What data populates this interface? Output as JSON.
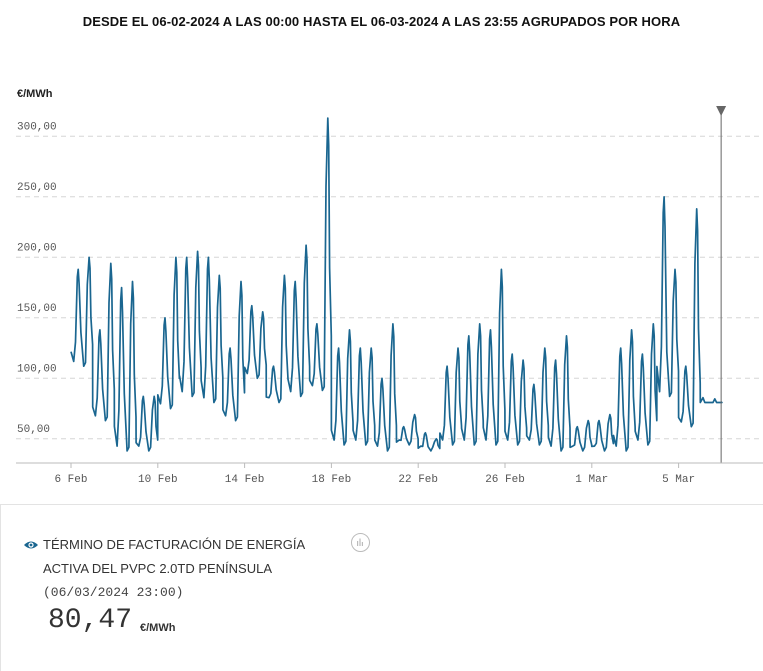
{
  "title": "DESDE EL 06-02-2024 A LAS 00:00 HASTA EL 06-03-2024 A LAS 23:55 AGRUPADOS POR HORA",
  "chart_data": {
    "type": "line",
    "ylabel": "€/MWh",
    "ylim": [
      30,
      330
    ],
    "yticks": [
      50,
      100,
      150,
      200,
      250,
      300
    ],
    "ytick_labels": [
      "50,00",
      "100,00",
      "150,00",
      "200,00",
      "250,00",
      "300,00"
    ],
    "xticks": [
      0,
      4,
      8,
      12,
      16,
      20,
      24,
      28
    ],
    "xtick_labels": [
      "6 Feb",
      "10 Feb",
      "14 Feb",
      "18 Feb",
      "22 Feb",
      "26 Feb",
      "1 Mar",
      "5 Mar"
    ],
    "xlim": [
      -0.2,
      31.2
    ],
    "grid": "horizontal-dashed",
    "cursor_day": 29.96,
    "series": [
      {
        "color": "#1a6690",
        "daily_peaks": [
          [
            190,
            200
          ],
          [
            140,
            195
          ],
          [
            175,
            180
          ],
          [
            85,
            85
          ],
          [
            150,
            200
          ],
          [
            200,
            205
          ],
          [
            200,
            185
          ],
          [
            125,
            180
          ],
          [
            160,
            155
          ],
          [
            110,
            185
          ],
          [
            180,
            210
          ],
          [
            145,
            315
          ],
          [
            125,
            140
          ],
          [
            125,
            125
          ],
          [
            100,
            145
          ],
          [
            60,
            70
          ],
          [
            55,
            50
          ],
          [
            110,
            125
          ],
          [
            135,
            145
          ],
          [
            140,
            190
          ],
          [
            120,
            115
          ],
          [
            95,
            125
          ],
          [
            115,
            135
          ],
          [
            60,
            65
          ],
          [
            65,
            70
          ],
          [
            125,
            140
          ],
          [
            120,
            145
          ],
          [
            250,
            190
          ],
          [
            110,
            240
          ],
          [
            80,
            80
          ]
        ],
        "daily_troughs": [
          110,
          65,
          40,
          40,
          75,
          85,
          80,
          65,
          100,
          80,
          85,
          90,
          45,
          45,
          40,
          45,
          40,
          45,
          45,
          45,
          45,
          45,
          40,
          40,
          40,
          40,
          45,
          85,
          60,
          80
        ],
        "last_value": 80.47
      }
    ]
  },
  "info": {
    "series_label_line1": "TÉRMINO DE FACTURACIÓN DE ENERGÍA",
    "series_label_line2": "ACTIVA DEL PVPC 2.0TD PENÍNSULA",
    "timestamp": "(06/03/2024 23:00)",
    "value": "80,47",
    "unit": "€/MWh",
    "eye_icon_color": "#1a6690"
  }
}
